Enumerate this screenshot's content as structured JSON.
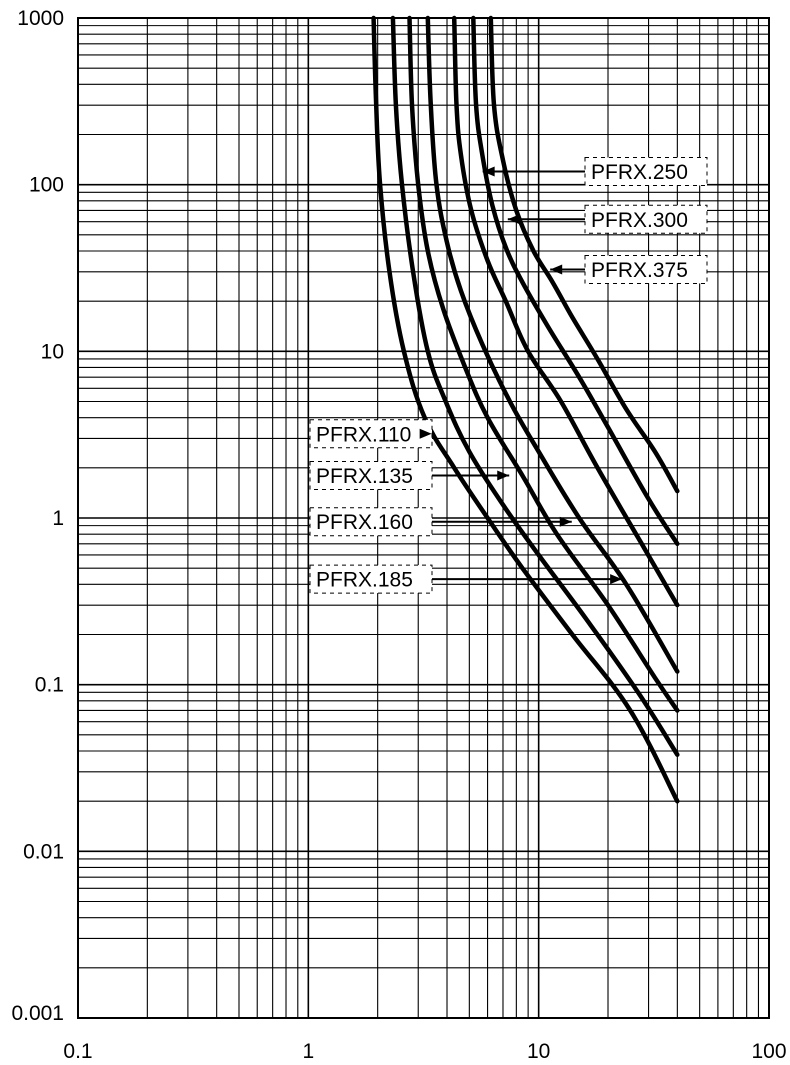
{
  "chart_data": {
    "type": "line",
    "title": "",
    "xlabel": "",
    "ylabel": "",
    "xscale": "log",
    "yscale": "log",
    "xlim": [
      0.1,
      100
    ],
    "ylim": [
      0.001,
      1000
    ],
    "grid": true,
    "x_tick_labels": [
      "0.1",
      "1",
      "10",
      "100"
    ],
    "y_tick_labels": [
      "1000",
      "100",
      "10",
      "1",
      "0.1",
      "0.01",
      "0.001"
    ],
    "series": [
      {
        "name": "PFRX.110",
        "label_side": "left",
        "label_pos": [
          3.5,
          3.2
        ],
        "points": [
          [
            1.92,
            1000
          ],
          [
            1.97,
            300
          ],
          [
            2.05,
            100
          ],
          [
            2.25,
            30
          ],
          [
            2.6,
            10
          ],
          [
            3.2,
            4
          ],
          [
            4.3,
            2
          ],
          [
            6,
            1
          ],
          [
            8.5,
            0.5
          ],
          [
            14,
            0.2
          ],
          [
            25,
            0.07
          ],
          [
            40,
            0.02
          ]
        ]
      },
      {
        "name": "PFRX.135",
        "label_side": "left",
        "label_pos": [
          7.6,
          1.8
        ],
        "points": [
          [
            2.33,
            1000
          ],
          [
            2.4,
            300
          ],
          [
            2.55,
            100
          ],
          [
            2.85,
            30
          ],
          [
            3.3,
            10
          ],
          [
            3.95,
            5
          ],
          [
            5,
            2.5
          ],
          [
            7,
            1.2
          ],
          [
            10,
            0.6
          ],
          [
            16,
            0.25
          ],
          [
            27,
            0.09
          ],
          [
            40,
            0.038
          ]
        ]
      },
      {
        "name": "PFRX.160",
        "label_side": "left",
        "label_pos": [
          14.2,
          0.95
        ],
        "points": [
          [
            2.75,
            1000
          ],
          [
            2.82,
            300
          ],
          [
            3.0,
            100
          ],
          [
            3.3,
            40
          ],
          [
            3.85,
            18
          ],
          [
            4.8,
            8
          ],
          [
            6,
            4
          ],
          [
            8.5,
            1.8
          ],
          [
            12,
            0.8
          ],
          [
            20,
            0.3
          ],
          [
            32,
            0.11
          ],
          [
            40,
            0.07
          ]
        ]
      },
      {
        "name": "PFRX.185",
        "label_side": "left",
        "label_pos": [
          23.5,
          0.43
        ],
        "points": [
          [
            3.3,
            1000
          ],
          [
            3.4,
            300
          ],
          [
            3.6,
            100
          ],
          [
            4.0,
            45
          ],
          [
            4.6,
            23
          ],
          [
            5.7,
            11
          ],
          [
            7.5,
            5
          ],
          [
            10,
            2.5
          ],
          [
            15,
            1
          ],
          [
            24,
            0.4
          ],
          [
            40,
            0.12
          ]
        ]
      },
      {
        "name": "PFRX.250",
        "label_side": "right",
        "label_pos": [
          5.6,
          120
        ],
        "points": [
          [
            4.3,
            1000
          ],
          [
            4.4,
            300
          ],
          [
            4.6,
            150
          ],
          [
            5.1,
            70
          ],
          [
            6.0,
            35
          ],
          [
            7.2,
            20
          ],
          [
            9,
            10
          ],
          [
            12.5,
            5
          ],
          [
            18,
            2
          ],
          [
            28,
            0.7
          ],
          [
            40,
            0.3
          ]
        ]
      },
      {
        "name": "PFRX.300",
        "label_side": "right",
        "label_pos": [
          7.2,
          62
        ],
        "points": [
          [
            5.2,
            1000
          ],
          [
            5.35,
            300
          ],
          [
            5.7,
            150
          ],
          [
            6.3,
            75
          ],
          [
            7.2,
            42
          ],
          [
            8.5,
            26
          ],
          [
            11,
            14
          ],
          [
            15,
            7
          ],
          [
            20,
            3.5
          ],
          [
            30,
            1.3
          ],
          [
            40,
            0.7
          ]
        ]
      },
      {
        "name": "PFRX.375",
        "label_side": "right",
        "label_pos": [
          11,
          31
        ],
        "points": [
          [
            6.2,
            1000
          ],
          [
            6.4,
            300
          ],
          [
            7,
            140
          ],
          [
            8,
            70
          ],
          [
            9.5,
            40
          ],
          [
            11.5,
            26
          ],
          [
            14,
            16
          ],
          [
            18,
            9
          ],
          [
            24,
            4.5
          ],
          [
            32,
            2.5
          ],
          [
            40,
            1.45
          ]
        ]
      }
    ]
  }
}
